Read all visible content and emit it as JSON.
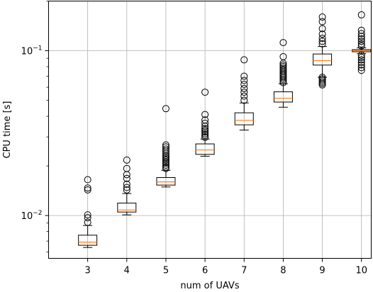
{
  "chart_data": {
    "type": "box",
    "title": "",
    "xlabel": "num of UAVs",
    "ylabel": "CPU time [s]",
    "yscale": "log",
    "ylim": [
      0.0055,
      0.2
    ],
    "xlim": [
      2,
      10.25
    ],
    "grid": true,
    "x_ticks": [
      3,
      4,
      5,
      6,
      7,
      8,
      9,
      10
    ],
    "y_ticks": [
      {
        "value": 0.01,
        "base": "10",
        "exp": "−2"
      },
      {
        "value": 0.1,
        "base": "10",
        "exp": "−1"
      }
    ],
    "median_color": "#ff7f0e",
    "box_color": "#000000",
    "boxes": [
      {
        "x": 3,
        "whisker_low": 0.0064,
        "q1": 0.0066,
        "median": 0.0069,
        "q3": 0.0076,
        "whisker_high": 0.0087,
        "outliers": [
          0.0091,
          0.0097,
          0.0101,
          0.0143,
          0.0147,
          0.0165
        ]
      },
      {
        "x": 4,
        "whisker_low": 0.0101,
        "q1": 0.0105,
        "median": 0.0108,
        "q3": 0.0119,
        "whisker_high": 0.0136,
        "outliers": [
          0.0143,
          0.0148,
          0.0155,
          0.0168,
          0.0177,
          0.0193,
          0.0217
        ]
      },
      {
        "x": 5,
        "whisker_low": 0.0149,
        "q1": 0.0153,
        "median": 0.016,
        "q3": 0.017,
        "whisker_high": 0.0188,
        "outliers": [
          0.0193,
          0.0197,
          0.0202,
          0.0207,
          0.0212,
          0.0217,
          0.0222,
          0.0227,
          0.0232,
          0.0239,
          0.0246,
          0.0253,
          0.0261,
          0.0268,
          0.0445
        ]
      },
      {
        "x": 6,
        "whisker_low": 0.0229,
        "q1": 0.0235,
        "median": 0.025,
        "q3": 0.0272,
        "whisker_high": 0.0291,
        "outliers": [
          0.0298,
          0.0306,
          0.0313,
          0.0321,
          0.0329,
          0.0337,
          0.0348,
          0.0363,
          0.038,
          0.041,
          0.056
        ]
      },
      {
        "x": 7,
        "whisker_low": 0.033,
        "q1": 0.0355,
        "median": 0.0378,
        "q3": 0.042,
        "whisker_high": 0.0482,
        "outliers": [
          0.05,
          0.053,
          0.056,
          0.059,
          0.0625,
          0.066,
          0.07,
          0.088
        ]
      },
      {
        "x": 8,
        "whisker_low": 0.0454,
        "q1": 0.0488,
        "median": 0.0515,
        "q3": 0.0563,
        "whisker_high": 0.063,
        "outliers": [
          0.064,
          0.0655,
          0.067,
          0.0685,
          0.07,
          0.0715,
          0.073,
          0.0748,
          0.0765,
          0.0782,
          0.08,
          0.0818,
          0.084,
          0.092,
          0.112
        ]
      },
      {
        "x": 9,
        "whisker_low": 0.069,
        "q1": 0.0818,
        "median": 0.087,
        "q3": 0.0955,
        "whisker_high": 0.106,
        "outliers": [
          0.062,
          0.0633,
          0.0646,
          0.066,
          0.0675,
          0.069,
          0.11,
          0.114,
          0.119,
          0.126,
          0.136,
          0.15,
          0.16
        ]
      },
      {
        "x": 10,
        "whisker_low": 0.096,
        "q1": 0.0985,
        "median": 0.1,
        "q3": 0.1015,
        "whisker_high": 0.104,
        "outliers": [
          0.076,
          0.079,
          0.082,
          0.085,
          0.088,
          0.091,
          0.094,
          0.107,
          0.11,
          0.114,
          0.118,
          0.122,
          0.127,
          0.133,
          0.165
        ]
      }
    ]
  }
}
